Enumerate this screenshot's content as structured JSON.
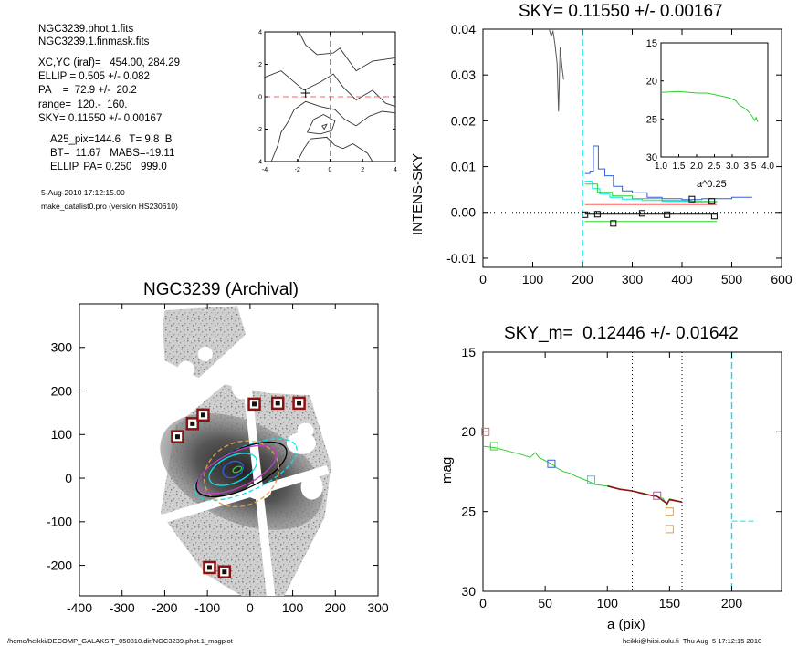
{
  "info": {
    "lines_a": [
      "NGC3239.phot.1.fits",
      "NGC3239.1.finmask.fits"
    ],
    "lines_b": [
      "XC,YC (iraf)=   454.00, 284.29",
      "ELLIP = 0.505 +/- 0.082",
      "PA    =  72.9 +/-  20.2",
      "range=  120.-  160.",
      "SKY= 0.11550 +/- 0.00167"
    ],
    "lines_c": [
      "A25_pix=144.6   T= 9.8  B",
      "BT=  11.67   MABS=-19.11",
      "ELLIP, PA= 0.250   999.0"
    ],
    "lines_d": [
      "5-Aug-2010 17:12:15.00",
      "make_datalist0.pro (version HS230610)"
    ]
  },
  "footer": {
    "left": "/home/heikki/DECOMP_GALAKSIT_050810.dir/NGC3239.phot.1_magplot",
    "right": "heikki@hiisi.oulu.fi  Thu Aug  5 17:12:15 2010"
  },
  "colors": {
    "cyan": "#00e5ee",
    "red": "#ff6060",
    "green": "#2fcf2f",
    "blue": "#3060e0",
    "brown": "#8b1010",
    "orange": "#e0a040",
    "purple": "#c040c0",
    "gray": "#555555"
  },
  "chart_data": [
    {
      "type": "line",
      "panel": "contour",
      "title": "",
      "xlim": [
        -4,
        4
      ],
      "ylim": [
        -4,
        4
      ],
      "x_ticks": [
        "-4",
        "-2",
        "0",
        "2",
        "4"
      ],
      "y_ticks": [
        "-4",
        "-2",
        "0",
        "2",
        "4"
      ],
      "contours": [
        [
          [
            -1.9,
            4.0
          ],
          [
            -1.5,
            3.2
          ],
          [
            -0.8,
            2.6
          ],
          [
            0.2,
            2.7
          ],
          [
            0.6,
            3.0
          ],
          [
            1.6,
            1.6
          ],
          [
            2.6,
            2.2
          ],
          [
            4.0,
            2.4
          ]
        ],
        [
          [
            -4.0,
            1.2
          ],
          [
            -3.0,
            1.6
          ],
          [
            -2.3,
            1.0
          ],
          [
            -1.6,
            0.4
          ],
          [
            -0.6,
            0.9
          ],
          [
            0.2,
            1.4
          ],
          [
            0.8,
            0.6
          ],
          [
            1.6,
            -0.2
          ],
          [
            2.6,
            0.4
          ],
          [
            3.4,
            -0.4
          ],
          [
            4.0,
            -0.6
          ]
        ],
        [
          [
            -3.6,
            -4.0
          ],
          [
            -3.2,
            -3.0
          ],
          [
            -3.0,
            -2.2
          ],
          [
            -2.6,
            -1.6
          ],
          [
            -2.2,
            -0.8
          ],
          [
            -1.5,
            -0.3
          ],
          [
            -0.6,
            -0.6
          ],
          [
            0.3,
            -0.8
          ],
          [
            0.9,
            -1.4
          ],
          [
            1.6,
            -1.8
          ],
          [
            2.4,
            -1.2
          ],
          [
            3.2,
            -0.9
          ],
          [
            4.0,
            -1.0
          ]
        ],
        [
          [
            -2.0,
            -4.0
          ],
          [
            -1.6,
            -3.2
          ],
          [
            -1.2,
            -2.6
          ],
          [
            -0.2,
            -2.5
          ],
          [
            0.3,
            -3.0
          ],
          [
            0.8,
            -3.2
          ],
          [
            1.4,
            -2.9
          ],
          [
            2.3,
            -3.5
          ],
          [
            2.6,
            -4.0
          ]
        ],
        [
          [
            -1.4,
            -2.2
          ],
          [
            -1.0,
            -1.4
          ],
          [
            -0.4,
            -1.1
          ],
          [
            0.3,
            -1.5
          ],
          [
            0.1,
            -2.1
          ],
          [
            -0.6,
            -2.3
          ],
          [
            -1.4,
            -2.2
          ]
        ],
        [
          [
            -0.5,
            -1.8
          ],
          [
            -0.2,
            -1.7
          ],
          [
            -0.35,
            -2.0
          ],
          [
            -0.5,
            -1.8
          ]
        ]
      ],
      "marker": [
        -1.5,
        0
      ],
      "dashed_lines": {
        "x": 0,
        "y": 0
      }
    },
    {
      "type": "line",
      "panel": "intens_sky",
      "title": "SKY= 0.11550 +/- 0.00167",
      "xlabel": "",
      "ylabel": "INTENS-SKY",
      "xlim": [
        0,
        600
      ],
      "ylim": [
        -0.012,
        0.04
      ],
      "x_ticks": [
        "0",
        "100",
        "200",
        "300",
        "400",
        "500",
        "600"
      ],
      "y_ticks": [
        "-0.01",
        "0.00",
        "0.01",
        "0.02",
        "0.03",
        "0.04"
      ],
      "series": [
        {
          "name": "",
          "color": "gray",
          "points": [
            [
              133,
              0.04
            ],
            [
              137,
              0.0385
            ],
            [
              141,
              0.0395
            ],
            [
              145,
              0.0365
            ],
            [
              149,
              0.0325
            ],
            [
              152,
              0.022
            ],
            [
              155,
              0.036
            ],
            [
              159,
              0.0315
            ],
            [
              162,
              0.029
            ]
          ]
        },
        {
          "name": "",
          "color": "blue",
          "points": [
            [
              205,
              0.0085
            ],
            [
              215,
              0.009
            ],
            [
              222,
              0.0145
            ],
            [
              232,
              0.0095
            ],
            [
              245,
              0.008
            ],
            [
              262,
              0.0057
            ],
            [
              280,
              0.0047
            ],
            [
              300,
              0.0043
            ],
            [
              330,
              0.0033
            ],
            [
              360,
              0.003
            ],
            [
              400,
              0.0028
            ],
            [
              440,
              0.003
            ],
            [
              470,
              0.003
            ],
            [
              500,
              0.0033
            ],
            [
              540,
              0.0032
            ]
          ]
        },
        {
          "name": "",
          "color": "cyan",
          "points": [
            [
              205,
              0.0068
            ],
            [
              220,
              0.0052
            ],
            [
              235,
              0.004
            ],
            [
              255,
              0.0033
            ],
            [
              280,
              0.0029
            ],
            [
              320,
              0.0026
            ],
            [
              360,
              0.0024
            ],
            [
              420,
              0.0023
            ],
            [
              470,
              0.0022
            ]
          ]
        },
        {
          "name": "",
          "color": "green",
          "points": [
            [
              205,
              0.0062
            ],
            [
              230,
              0.0044
            ],
            [
              260,
              0.0036
            ],
            [
              300,
              0.003
            ],
            [
              360,
              0.0026
            ],
            [
              420,
              0.0024
            ],
            [
              470,
              0.0024
            ]
          ]
        },
        {
          "name": "",
          "color": "red",
          "points": [
            [
              205,
              0.0017
            ],
            [
              470,
              0.0017
            ]
          ]
        },
        {
          "name": "",
          "color": "green",
          "points": [
            [
              205,
              -0.002
            ],
            [
              470,
              -0.002
            ]
          ]
        },
        {
          "name": "",
          "color": "black",
          "points": [
            [
              205,
              -0.0003
            ],
            [
              470,
              -0.0003
            ]
          ]
        }
      ],
      "squares": [
        [
          205,
          -0.0005
        ],
        [
          230,
          -0.0004
        ],
        [
          262,
          -0.0024
        ],
        [
          320,
          -0.0002
        ],
        [
          370,
          -0.0005
        ],
        [
          420,
          0.0029
        ],
        [
          460,
          0.0024
        ],
        [
          465,
          -0.0008
        ]
      ],
      "sky_cut_x": 200,
      "inset": {
        "xlabel": "a^0.25",
        "xlim": [
          1.0,
          4.0
        ],
        "ylim": [
          15,
          30
        ],
        "x_ticks": [
          "1.0",
          "1.5",
          "2.0",
          "2.5",
          "3.0",
          "3.5",
          "4.0"
        ],
        "y_ticks": [
          "15",
          "20",
          "25",
          "30"
        ],
        "points": [
          [
            1.0,
            21.5
          ],
          [
            1.5,
            21.4
          ],
          [
            2.0,
            21.6
          ],
          [
            2.3,
            21.6
          ],
          [
            2.6,
            21.9
          ],
          [
            2.9,
            22.2
          ],
          [
            3.1,
            22.6
          ],
          [
            3.2,
            23.2
          ],
          [
            3.35,
            23.6
          ],
          [
            3.45,
            24.0
          ],
          [
            3.55,
            24.6
          ],
          [
            3.63,
            25.2
          ],
          [
            3.67,
            24.8
          ],
          [
            3.72,
            25.4
          ]
        ]
      }
    },
    {
      "type": "scatter",
      "panel": "image",
      "title": "NGC3239 (Archival)",
      "xlim": [
        -400,
        300
      ],
      "ylim": [
        -270,
        400
      ],
      "x_ticks": [
        "-400",
        "-300",
        "-200",
        "-100",
        "0",
        "100",
        "200",
        "300"
      ],
      "y_ticks": [
        "-200",
        "-100",
        "0",
        "100",
        "200",
        "300"
      ],
      "squares": [
        [
          -170,
          95
        ],
        [
          -135,
          125
        ],
        [
          -110,
          145
        ],
        [
          10,
          170
        ],
        [
          65,
          172
        ],
        [
          115,
          172
        ],
        [
          -95,
          -205
        ],
        [
          -60,
          -215
        ]
      ],
      "ellipses": [
        {
          "color": "cyan",
          "cx": -10,
          "cy": 20,
          "a": 260,
          "b": 100,
          "angle": 25,
          "dashed": true
        },
        {
          "color": "black",
          "cx": -20,
          "cy": 20,
          "a": 230,
          "b": 90,
          "angle": 25,
          "dashed": false
        },
        {
          "color": "orange",
          "cx": -20,
          "cy": 10,
          "a": 180,
          "b": 145,
          "angle": 25,
          "dashed": true
        },
        {
          "color": "purple",
          "cx": -30,
          "cy": 20,
          "a": 200,
          "b": 80,
          "angle": 25,
          "dashed": false
        },
        {
          "color": "cyan",
          "cx": -40,
          "cy": 20,
          "a": 120,
          "b": 60,
          "angle": 25,
          "dashed": false
        },
        {
          "color": "blue",
          "cx": -40,
          "cy": 20,
          "a": 50,
          "b": 35,
          "angle": 25,
          "dashed": false
        },
        {
          "color": "green",
          "cx": -30,
          "cy": 20,
          "a": 22,
          "b": 12,
          "angle": 25,
          "dashed": false
        }
      ]
    },
    {
      "type": "line",
      "panel": "mag",
      "title": "SKY_m=  0.12446 +/- 0.01642",
      "xlabel": "a (pix)",
      "ylabel": "mag",
      "xlim": [
        0,
        240
      ],
      "ylim": [
        30,
        15
      ],
      "x_ticks": [
        "0",
        "50",
        "100",
        "150",
        "200"
      ],
      "y_ticks": [
        "15",
        "20",
        "25",
        "30"
      ],
      "series": [
        {
          "name": "",
          "color": "green",
          "points": [
            [
              0,
              20.9
            ],
            [
              10,
              21.0
            ],
            [
              20,
              21.2
            ],
            [
              30,
              21.4
            ],
            [
              38,
              21.6
            ],
            [
              42,
              21.3
            ],
            [
              45,
              21.6
            ],
            [
              50,
              21.8
            ],
            [
              55,
              22.0
            ],
            [
              60,
              22.3
            ],
            [
              65,
              22.5
            ],
            [
              70,
              22.6
            ],
            [
              75,
              22.8
            ],
            [
              80,
              22.95
            ],
            [
              85,
              23.1
            ],
            [
              90,
              23.3
            ],
            [
              100,
              23.4
            ],
            [
              110,
              23.6
            ],
            [
              120,
              23.7
            ],
            [
              130,
              23.85
            ],
            [
              135,
              24.0
            ],
            [
              140,
              24.05
            ],
            [
              145,
              24.2
            ],
            [
              148,
              24.6
            ],
            [
              150,
              24.2
            ],
            [
              155,
              24.3
            ],
            [
              160,
              24.4
            ]
          ]
        },
        {
          "name": "",
          "color": "brown",
          "points": [
            [
              100,
              23.4
            ],
            [
              110,
              23.6
            ],
            [
              120,
              23.7
            ],
            [
              130,
              23.9
            ],
            [
              140,
              24.05
            ],
            [
              148,
              24.5
            ],
            [
              150,
              24.25
            ],
            [
              160,
              24.4
            ]
          ]
        },
        {
          "name": "",
          "color": "cyan",
          "points": [
            [
              200,
              25.6
            ],
            [
              220,
              25.6
            ]
          ]
        }
      ],
      "squares": [
        {
          "color": "red",
          "a": 2,
          "m": 20.0
        },
        {
          "color": "green",
          "a": 9,
          "m": 20.9
        },
        {
          "color": "blue",
          "a": 55,
          "m": 22.0
        },
        {
          "color": "cyan",
          "a": 87,
          "m": 23.0
        },
        {
          "color": "purple",
          "a": 140,
          "m": 24.0
        },
        {
          "color": "orange",
          "a": 150,
          "m": 25.0
        },
        {
          "color": "orange",
          "a": 150,
          "m": 26.1
        }
      ],
      "dotted_x": [
        120,
        160
      ],
      "dashed_x": 200
    }
  ]
}
